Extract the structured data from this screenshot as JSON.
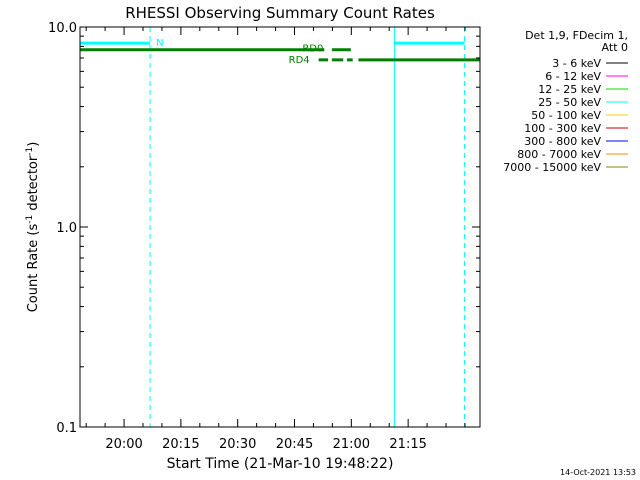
{
  "chart_data": {
    "type": "line",
    "title": "RHESSI Observing Summary Count Rates",
    "xlabel": "Start Time (21-Mar-10 19:48:22)",
    "ylabel_main": "Count Rate (s",
    "ylabel_sup1": "-1",
    "ylabel_mid": " detector",
    "ylabel_sup2": "-1",
    "ylabel_end": ")",
    "y_scale": "log",
    "ylim": [
      0.1,
      10.0
    ],
    "xlim_minutes": [
      0,
      105.6
    ],
    "x_ticks": [
      {
        "minute": 11.63,
        "label": "20:00"
      },
      {
        "minute": 26.63,
        "label": "20:15"
      },
      {
        "minute": 41.63,
        "label": "20:30"
      },
      {
        "minute": 56.63,
        "label": "20:45"
      },
      {
        "minute": 71.63,
        "label": "21:00"
      },
      {
        "minute": 86.63,
        "label": "21:15"
      }
    ],
    "y_ticks": [
      {
        "value": 10.0,
        "label": "10.0"
      },
      {
        "value": 1.0,
        "label": "1.0"
      },
      {
        "value": 0.1,
        "label": "0.1"
      }
    ],
    "legend": {
      "header": [
        "Det 1,9, FDecim 1,",
        "Att 0"
      ],
      "items": [
        {
          "label": "3 - 6 keV",
          "color": "#000000"
        },
        {
          "label": "6 - 12 keV",
          "color": "#ff00ff"
        },
        {
          "label": "12 - 25 keV",
          "color": "#00dd00"
        },
        {
          "label": "25 - 50 keV",
          "color": "#00ffff"
        },
        {
          "label": "50 - 100 keV",
          "color": "#ffcc00"
        },
        {
          "label": "100 - 300 keV",
          "color": "#cc0000"
        },
        {
          "label": "300 - 800 keV",
          "color": "#0000ff"
        },
        {
          "label": "800 - 7000 keV",
          "color": "#ff8800"
        },
        {
          "label": "7000 - 15000 keV",
          "color": "#888800"
        }
      ]
    },
    "night_segments": [
      {
        "start": 0,
        "end": 18.5,
        "value": 8.3,
        "label": "N"
      },
      {
        "start": 83,
        "end": 101.5,
        "value": 8.3,
        "label": ""
      }
    ],
    "night_solid_lines": [
      0,
      83
    ],
    "night_dashed_lines": [
      18.5,
      101.5
    ],
    "radiation_segments": [
      {
        "label": "RD0",
        "value": 7.7,
        "pieces": [
          [
            0,
            64.5
          ],
          [
            66.5,
            71.5
          ]
        ]
      },
      {
        "label": "RD4",
        "value": 6.85,
        "pieces": [
          [
            63,
            65.5
          ],
          [
            66.5,
            69.5
          ],
          [
            70.5,
            72
          ],
          [
            73.5,
            105.6
          ]
        ]
      }
    ],
    "timestamp": "14-Oct-2021 13:53"
  }
}
